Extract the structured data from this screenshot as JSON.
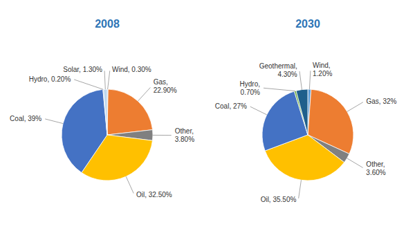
{
  "chart_data": [
    {
      "type": "pie",
      "title": "2008",
      "categories": [
        "Wind, 0.30%",
        "Gas,\n22.90%",
        "Other,\n3.80%",
        "Oil, 32.50%",
        "Coal, 39%",
        "Hydro, 0.20%",
        "Solar, 1.30%"
      ],
      "values": [
        0.3,
        22.9,
        3.8,
        32.5,
        39.0,
        0.2,
        1.3
      ],
      "colors": [
        "#5b9bd5",
        "#ed7d31",
        "#808080",
        "#ffc000",
        "#4472c4",
        "#4472c4",
        "#bdd7ee"
      ]
    },
    {
      "type": "pie",
      "title": "2030",
      "categories": [
        "Wind,\n1.20%",
        "Gas, 32%",
        "Other,\n3.60%",
        "Oil, 35.50%",
        "Coal, 27%",
        "Hydro,\n0.70%",
        "Geothermal,\n4.30%"
      ],
      "values": [
        1.2,
        32.0,
        3.6,
        35.5,
        27.0,
        0.7,
        4.3
      ],
      "colors": [
        "#5b9bd5",
        "#ed7d31",
        "#808080",
        "#ffc000",
        "#4472c4",
        "#70ad47",
        "#1f5f8b"
      ]
    }
  ]
}
